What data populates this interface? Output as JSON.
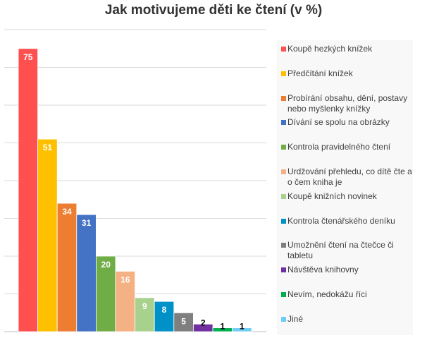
{
  "chart_data": {
    "type": "bar",
    "title": "Jak motivujeme děti ke čtení (v %)",
    "xlabel": "",
    "ylabel": "",
    "ylim": [
      0,
      80
    ],
    "grid": true,
    "legend_position": "right",
    "categories": [
      "Koupě hezkých knížek",
      "Předčítání knížek",
      "Probírání obsahu, dění, postavy nebo myšlenky knížky",
      "Dívání se spolu na obrázky",
      "Kontrola pravidelného čtení",
      "Urdžování přehledu, co dítě čte a o čem kniha je",
      "Koupě knižních novinek",
      "Kontrola čtenářského deníku",
      "Umožnění čtení na čtečce či tabletu",
      "Návštěva knihovny",
      "Nevím, nedokážu říci",
      "Jiné"
    ],
    "values": [
      75,
      51,
      34,
      31,
      20,
      16,
      9,
      8,
      5,
      2,
      1,
      1
    ],
    "colors": [
      "#ff5050",
      "#ffc000",
      "#ed7d31",
      "#4472c4",
      "#70ad47",
      "#f4b183",
      "#a9d18e",
      "#0091c8",
      "#7f7f7f",
      "#7030a0",
      "#00b050",
      "#6fcdf5"
    ],
    "label_colors": [
      "#ffffff",
      "#ffffff",
      "#ffffff",
      "#ffffff",
      "#ffffff",
      "#ffffff",
      "#ffffff",
      "#ffffff",
      "#ffffff",
      "#000000",
      "#000000",
      "#000000"
    ]
  }
}
